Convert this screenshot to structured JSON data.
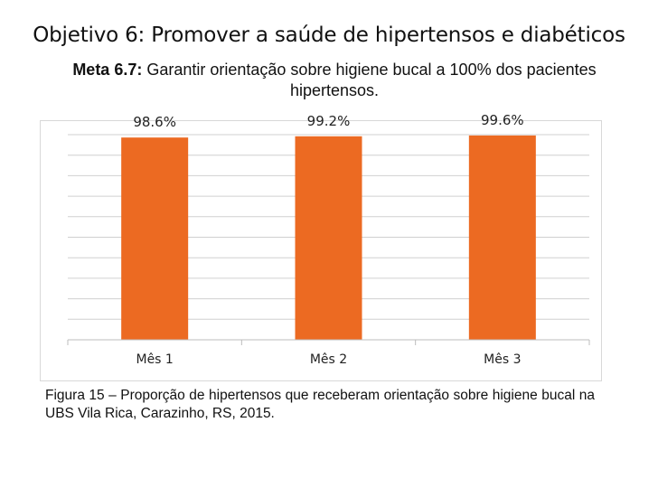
{
  "title": "Objetivo 6: Promover a saúde de hipertensos e diabéticos",
  "subtitle": {
    "label": "Meta 6.7:",
    "text": " Garantir orientação sobre higiene bucal a 100% dos pacientes hipertensos."
  },
  "chart_data": {
    "type": "bar",
    "categories": [
      "Mês 1",
      "Mês 2",
      "Mês 3"
    ],
    "values": [
      98.6,
      99.2,
      99.6
    ],
    "data_labels": [
      "98.6%",
      "99.2%",
      "99.6%"
    ],
    "ylim": [
      0,
      100
    ],
    "grid": true,
    "bar_color": "#ec6a22",
    "title": "",
    "xlabel": "",
    "ylabel": ""
  },
  "caption": "Figura 15 – Proporção de hipertensos que receberam orientação sobre higiene bucal na UBS Vila Rica, Carazinho, RS, 2015."
}
